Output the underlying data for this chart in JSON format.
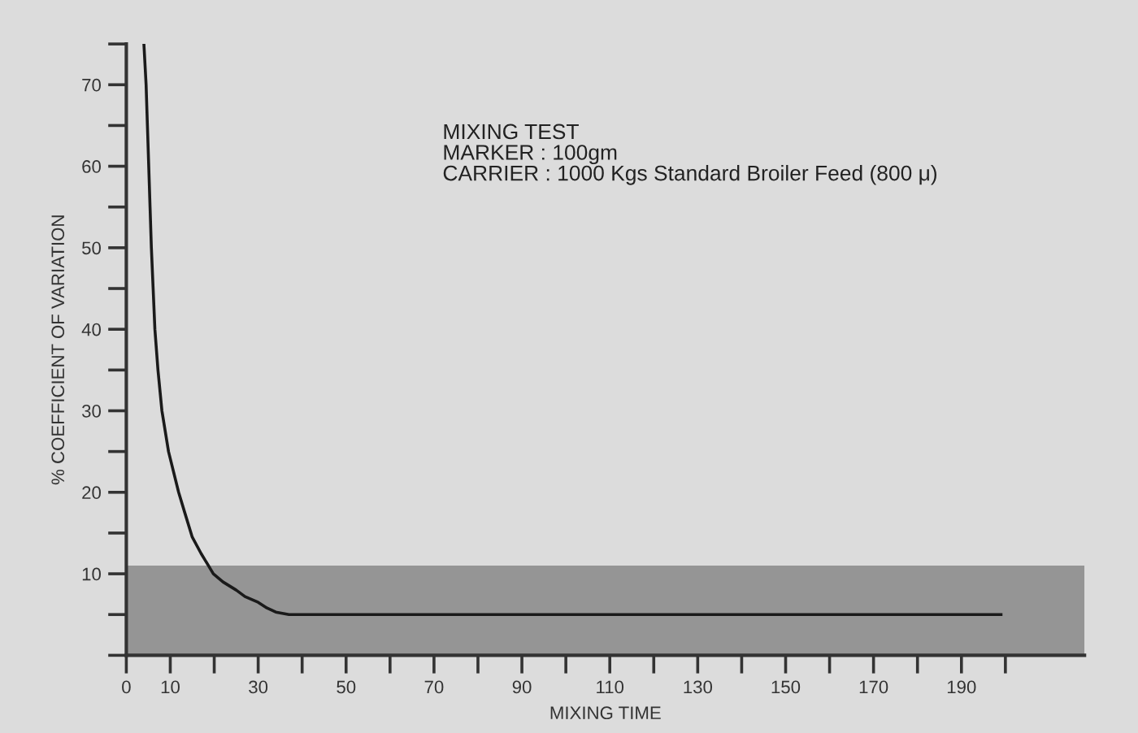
{
  "chart_data": {
    "type": "line",
    "xlabel": "MIXING TIME",
    "ylabel": "% COEFFICIENT OF VARIATION",
    "annotations": [
      "MIXING TEST",
      "MARKER : 100gm",
      "CARRIER : 1000 Kgs Standard Broiler Feed (800 μ)"
    ],
    "series": [
      {
        "color": "#1a1a1a",
        "x": [
          4,
          4.2,
          4.5,
          4.8,
          5.1,
          5.4,
          5.7,
          6.1,
          6.5,
          7.2,
          8.1,
          9.6,
          11.9,
          13.3,
          15,
          17,
          19.8,
          22,
          25,
          27,
          30,
          32,
          34,
          37,
          199
        ],
        "values": [
          75,
          73,
          70,
          65,
          60,
          55,
          50,
          45,
          40,
          35,
          30,
          25,
          20,
          17.5,
          14.5,
          12.5,
          10,
          9,
          8,
          7.2,
          6.5,
          5.8,
          5.3,
          5,
          5
        ]
      }
    ],
    "xlim": [
      0,
      218
    ],
    "ylim": [
      0,
      75
    ],
    "xticks": [
      0,
      10,
      {
        "value": 20,
        "label": null
      },
      30,
      {
        "value": 40,
        "label": null
      },
      50,
      {
        "value": 60,
        "label": null
      },
      70,
      {
        "value": 80,
        "label": null
      },
      90,
      {
        "value": 100,
        "label": null
      },
      110,
      {
        "value": 120,
        "label": null
      },
      130,
      {
        "value": 140,
        "label": null
      },
      150,
      {
        "value": 160,
        "label": null
      },
      170,
      {
        "value": 180,
        "label": null
      },
      190,
      {
        "value": 200,
        "label": null
      }
    ],
    "yticks": [
      {
        "value": 0,
        "label": null
      },
      {
        "value": 5,
        "label": null
      },
      10,
      {
        "value": 15,
        "label": null
      },
      20,
      {
        "value": 25,
        "label": null
      },
      30,
      {
        "value": 35,
        "label": null
      },
      40,
      {
        "value": 45,
        "label": null
      },
      50,
      {
        "value": 55,
        "label": null
      },
      60,
      {
        "value": 65,
        "label": null
      },
      70,
      {
        "value": 75,
        "label": null
      }
    ],
    "bands": [
      {
        "axis": "y",
        "from": 0,
        "to": 11,
        "color": "#959595"
      }
    ],
    "grid": false,
    "marker": "none",
    "line_style": "solid"
  }
}
